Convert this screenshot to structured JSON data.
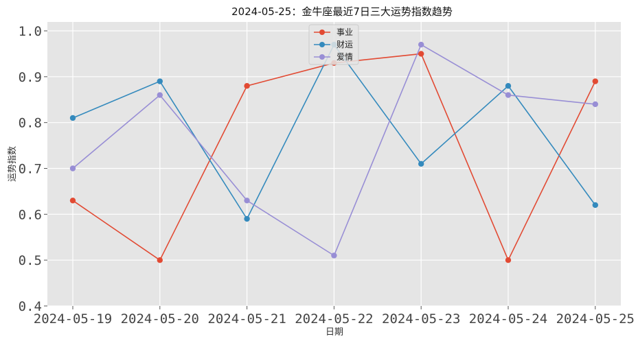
{
  "chart_data": {
    "type": "line",
    "title": "2024-05-25：金牛座最近7日三大运势指数趋势",
    "xlabel": "日期",
    "ylabel": "运势指数",
    "categories": [
      "2024-05-19",
      "2024-05-20",
      "2024-05-21",
      "2024-05-22",
      "2024-05-23",
      "2024-05-24",
      "2024-05-25"
    ],
    "ylim": [
      0.4,
      1.0
    ],
    "yticks": [
      "0.4",
      "0.5",
      "0.6",
      "0.7",
      "0.8",
      "0.9",
      "1.0"
    ],
    "grid": true,
    "legend_position": "top-center",
    "series": [
      {
        "name": "事业",
        "color": "#E24A33",
        "values": [
          0.63,
          0.5,
          0.88,
          0.93,
          0.95,
          0.5,
          0.89
        ]
      },
      {
        "name": "财运",
        "color": "#348ABD",
        "values": [
          0.81,
          0.89,
          0.59,
          0.97,
          0.71,
          0.88,
          0.62
        ]
      },
      {
        "name": "爱情",
        "color": "#988ED5",
        "values": [
          0.7,
          0.86,
          0.63,
          0.51,
          0.97,
          0.86,
          0.84
        ]
      }
    ]
  }
}
